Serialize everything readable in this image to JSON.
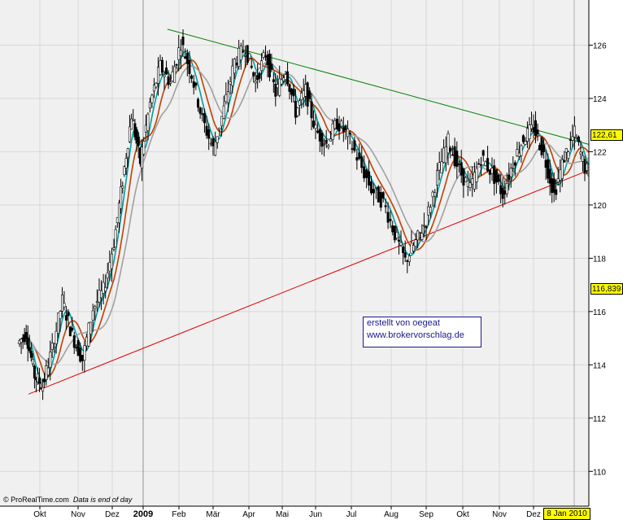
{
  "chart_data": {
    "type": "candlestick",
    "y_axis": {
      "ticks": [
        110,
        112,
        114,
        116,
        118,
        120,
        122,
        124,
        126,
        128
      ],
      "range": [
        109,
        128
      ]
    },
    "x_axis": {
      "labels": [
        "Okt",
        "Nov",
        "Dez",
        "2009",
        "Feb",
        "Mär",
        "Apr",
        "Mai",
        "Jun",
        "Jul",
        "Aug",
        "Sep",
        "Okt",
        "Nov",
        "Dez"
      ]
    },
    "last_price_label": "122,61",
    "support_level_label": "116,839",
    "date_label": "8 Jan 2010",
    "annotation": [
      "erstellt von oegeat",
      "www.brokervorschlag.de"
    ],
    "credit": {
      "source": "© ProRealTime.com",
      "note": "Data is end of day"
    },
    "trendlines": [
      {
        "name": "resistance",
        "color": "#008000",
        "from": {
          "month": 4.4,
          "value": 126.6
        },
        "to": {
          "month": 17.5,
          "value": 121.8
        }
      },
      {
        "name": "support",
        "color": "#e00000",
        "from": {
          "month": 0.0,
          "value": 112.9
        },
        "to": {
          "month": 17.5,
          "value": 122.0
        }
      }
    ],
    "price_path": [
      [
        0.0,
        114.8
      ],
      [
        0.3,
        115.2
      ],
      [
        0.6,
        113.6
      ],
      [
        0.9,
        113.2
      ],
      [
        1.2,
        114.6
      ],
      [
        1.5,
        116.4
      ],
      [
        1.8,
        115.1
      ],
      [
        2.1,
        114.2
      ],
      [
        2.4,
        116.1
      ],
      [
        2.7,
        116.8
      ],
      [
        3.0,
        118.6
      ],
      [
        3.3,
        120.9
      ],
      [
        3.6,
        123.4
      ],
      [
        3.9,
        121.6
      ],
      [
        4.2,
        123.8
      ],
      [
        4.5,
        125.2
      ],
      [
        4.8,
        124.6
      ],
      [
        5.1,
        126.1
      ],
      [
        5.4,
        124.9
      ],
      [
        5.7,
        123.2
      ],
      [
        6.0,
        122.1
      ],
      [
        6.3,
        123.6
      ],
      [
        6.6,
        125.4
      ],
      [
        6.9,
        125.9
      ],
      [
        7.2,
        124.6
      ],
      [
        7.5,
        125.7
      ],
      [
        7.8,
        124.2
      ],
      [
        8.1,
        125.1
      ],
      [
        8.4,
        123.5
      ],
      [
        8.7,
        124.3
      ],
      [
        9.0,
        122.8
      ],
      [
        9.3,
        122.3
      ],
      [
        9.6,
        123.1
      ],
      [
        9.9,
        122.6
      ],
      [
        10.2,
        121.6
      ],
      [
        10.5,
        120.6
      ],
      [
        10.8,
        120.1
      ],
      [
        11.1,
        118.9
      ],
      [
        11.4,
        117.9
      ],
      [
        11.7,
        118.6
      ],
      [
        12.0,
        119.4
      ],
      [
        12.3,
        121.1
      ],
      [
        12.6,
        122.4
      ],
      [
        12.9,
        121.3
      ],
      [
        13.2,
        120.6
      ],
      [
        13.5,
        121.8
      ],
      [
        13.8,
        121.2
      ],
      [
        14.1,
        120.4
      ],
      [
        14.4,
        121.6
      ],
      [
        14.7,
        122.5
      ],
      [
        15.0,
        122.9
      ],
      [
        15.3,
        121.9
      ],
      [
        15.6,
        120.4
      ],
      [
        15.9,
        121.8
      ],
      [
        16.2,
        122.7
      ],
      [
        16.5,
        121.4
      ],
      [
        16.8,
        120.9
      ],
      [
        17.1,
        121.3
      ],
      [
        17.4,
        121.1
      ],
      [
        17.7,
        121.6
      ],
      [
        18.0,
        121.3
      ],
      [
        18.3,
        122.4
      ],
      [
        18.5,
        122.61
      ]
    ],
    "moving_average_colors": [
      "#00a0a0",
      "#c04000",
      "#a0a0a0"
    ],
    "grid": true
  }
}
